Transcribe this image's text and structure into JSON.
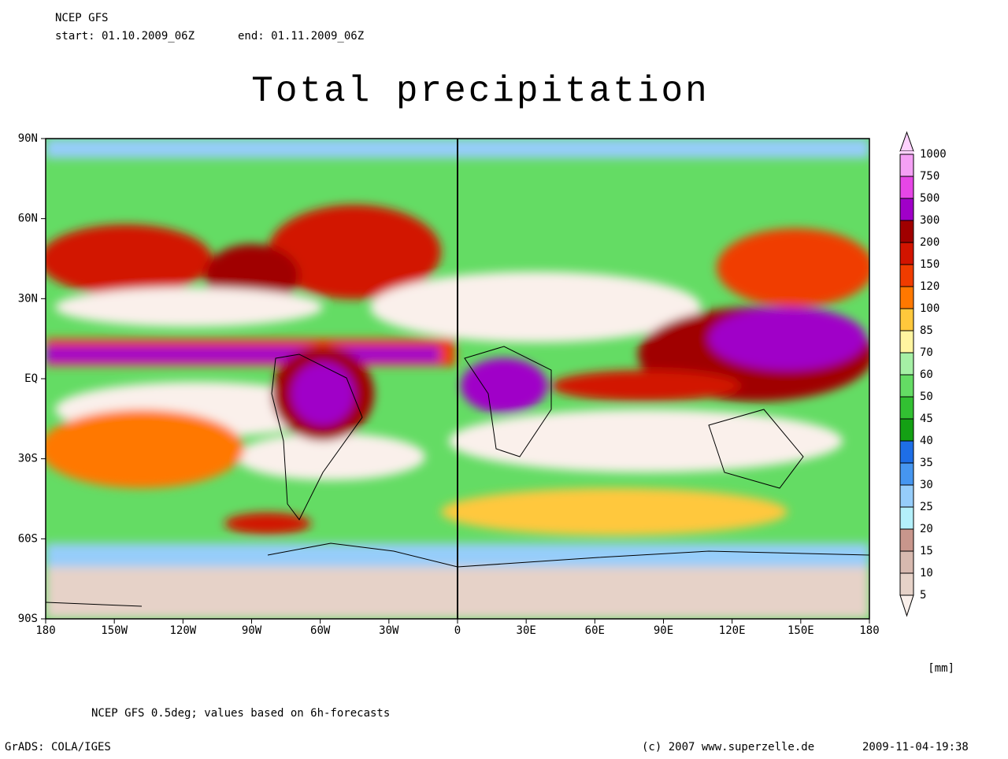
{
  "header": {
    "model": "NCEP GFS",
    "start": "start: 01.10.2009_06Z",
    "end": "end: 01.11.2009_06Z"
  },
  "title": "Total precipitation",
  "map": {
    "y_labels": [
      "90N",
      "60N",
      "30N",
      "EQ",
      "30S",
      "60S",
      "90S"
    ],
    "x_labels": [
      "180",
      "150W",
      "120W",
      "90W",
      "60W",
      "30W",
      "0",
      "30E",
      "60E",
      "90E",
      "120E",
      "150E",
      "180"
    ]
  },
  "colorbar": {
    "levels": [
      "1000",
      "750",
      "500",
      "300",
      "200",
      "150",
      "120",
      "100",
      "85",
      "70",
      "60",
      "50",
      "45",
      "40",
      "35",
      "30",
      "25",
      "20",
      "15",
      "10",
      "5"
    ],
    "colors": [
      "#ffd2ff",
      "#f5a0f5",
      "#e646e6",
      "#a000c8",
      "#a00000",
      "#d21400",
      "#f03c00",
      "#ff7800",
      "#ffc83c",
      "#fff5a0",
      "#a5f0a5",
      "#64dc64",
      "#32c032",
      "#14a014",
      "#1e6ee6",
      "#4696f0",
      "#96cdfa",
      "#b4f0fa",
      "#c8968c",
      "#d7b9af",
      "#e6d2c8",
      "#faf0eb"
    ],
    "unit": "[mm]"
  },
  "footer": {
    "note": "NCEP GFS 0.5deg; values based on 6h-forecasts",
    "software": "GrADS: COLA/IGES",
    "copyright": "(c) 2007 www.superzelle.de",
    "timestamp": "2009-11-04-19:38"
  }
}
